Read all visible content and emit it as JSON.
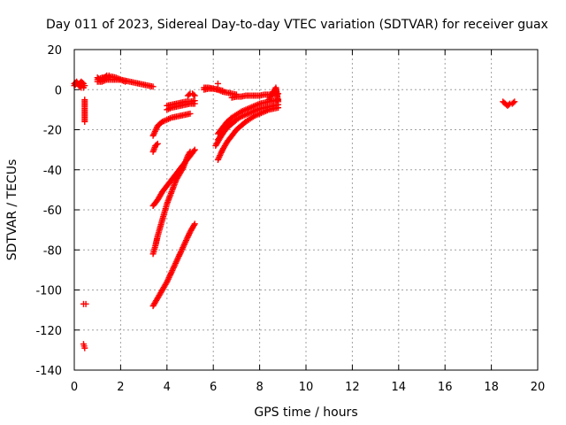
{
  "chart_data": {
    "type": "scatter",
    "title": "Day 011 of 2023, Sidereal Day-to-day VTEC variation (SDTVAR) for receiver guax",
    "xlabel": "GPS time / hours",
    "ylabel": "SDTVAR / TECUs",
    "xlim": [
      0,
      20
    ],
    "ylim": [
      -140,
      20
    ],
    "xticks": [
      "0",
      "2",
      "4",
      "6",
      "8",
      "10",
      "12",
      "14",
      "16",
      "18",
      "20"
    ],
    "yticks": [
      "20",
      "0",
      "-20",
      "-40",
      "-60",
      "-80",
      "-100",
      "-120",
      "-140"
    ],
    "grid": true,
    "marker": "+",
    "color": "#ff0000",
    "series": [
      {
        "name": "s1",
        "x": [
          0.0,
          0.1,
          0.2,
          0.3,
          0.4,
          0.45
        ],
        "y": [
          2,
          3,
          3,
          4,
          3,
          2
        ]
      },
      {
        "name": "s2",
        "x": [
          0.0,
          0.1,
          0.2,
          0.3,
          0.4
        ],
        "y": [
          3,
          4,
          2,
          1,
          1
        ]
      },
      {
        "name": "s3",
        "x": [
          0.45,
          0.45
        ],
        "y": [
          -5,
          -16
        ]
      },
      {
        "name": "s4",
        "x": [
          0.4,
          0.5
        ],
        "y": [
          -107,
          -107
        ]
      },
      {
        "name": "s5",
        "x": [
          0.4,
          0.45
        ],
        "y": [
          -127,
          -129
        ]
      },
      {
        "name": "s6",
        "x": [
          1.0,
          1.2,
          1.4,
          1.6,
          1.8,
          2.0,
          2.2,
          2.4,
          2.6,
          2.8,
          3.0,
          3.2,
          3.4
        ],
        "y": [
          5,
          6,
          6,
          6.5,
          6,
          5,
          4.5,
          4,
          3.5,
          3,
          2.5,
          2,
          1.5
        ]
      },
      {
        "name": "s7",
        "x": [
          1.0,
          1.2,
          1.4,
          1.6,
          1.8,
          2.0,
          2.2
        ],
        "y": [
          4,
          4,
          5,
          5,
          5,
          5,
          4
        ]
      },
      {
        "name": "s8",
        "x": [
          1.0,
          1.1,
          1.2,
          1.3,
          1.4,
          1.5
        ],
        "y": [
          6,
          5,
          5,
          6,
          7,
          7
        ]
      },
      {
        "name": "s9",
        "x": [
          3.4,
          3.6,
          3.8,
          4.0,
          4.2,
          4.4,
          4.6,
          4.8,
          5.0
        ],
        "y": [
          -23,
          -18,
          -16,
          -15,
          -14,
          -13.5,
          -13,
          -12.5,
          -12
        ]
      },
      {
        "name": "s10",
        "x": [
          3.4,
          3.5,
          3.6
        ],
        "y": [
          -31,
          -28,
          -27
        ]
      },
      {
        "name": "s11",
        "x": [
          4.0,
          4.2,
          4.4,
          4.6,
          4.8,
          5.0,
          5.2
        ],
        "y": [
          -10,
          -9,
          -8.5,
          -8,
          -7.5,
          -7,
          -7
        ]
      },
      {
        "name": "s12",
        "x": [
          4.0,
          4.2,
          4.4,
          4.6,
          4.8,
          5.0,
          5.2
        ],
        "y": [
          -8,
          -7.5,
          -7,
          -6.5,
          -6,
          -6,
          -5.5
        ]
      },
      {
        "name": "s13",
        "x": [
          4.9,
          5.0,
          5.1,
          5.2
        ],
        "y": [
          -3,
          -2,
          -2,
          -3
        ]
      },
      {
        "name": "s14",
        "x": [
          3.4,
          3.6,
          3.8,
          4.0,
          4.2,
          4.4,
          4.6,
          4.8,
          5.0,
          5.2
        ],
        "y": [
          -58,
          -55,
          -51,
          -48,
          -45,
          -42,
          -39,
          -36,
          -33,
          -30
        ]
      },
      {
        "name": "s15",
        "x": [
          3.4,
          3.5,
          3.6,
          3.7,
          3.8,
          3.9,
          4.0,
          4.1,
          4.2,
          4.3,
          4.4,
          4.5,
          4.6,
          4.7,
          4.8,
          4.9,
          5.0
        ],
        "y": [
          -82,
          -78,
          -73,
          -69,
          -65,
          -61,
          -57,
          -54,
          -51,
          -48,
          -45,
          -43,
          -41,
          -39,
          -36,
          -33,
          -31
        ]
      },
      {
        "name": "s16",
        "x": [
          3.4,
          3.6,
          3.8,
          4.0,
          4.2,
          4.4,
          4.6,
          4.8,
          5.0,
          5.2
        ],
        "y": [
          -108,
          -104,
          -100,
          -96,
          -91,
          -86,
          -81,
          -76,
          -71,
          -67
        ]
      },
      {
        "name": "s17",
        "x": [
          5.6,
          5.8,
          6.0,
          6.2,
          6.4,
          6.6,
          6.8,
          7.0
        ],
        "y": [
          1,
          1,
          0.5,
          0,
          -1,
          -1.5,
          -2,
          -2.5
        ]
      },
      {
        "name": "s18",
        "x": [
          5.6,
          5.8,
          6.0,
          6.2,
          6.4
        ],
        "y": [
          0,
          0.5,
          0.5,
          0,
          -0.5
        ]
      },
      {
        "name": "s19",
        "x": [
          6.2
        ],
        "y": [
          3
        ]
      },
      {
        "name": "s20",
        "x": [
          6.8,
          7.0,
          7.2,
          7.4,
          7.6,
          7.8,
          8.0,
          8.2,
          8.4,
          8.6,
          8.8
        ],
        "y": [
          -4,
          -3.5,
          -3.5,
          -3,
          -3,
          -3,
          -3,
          -2.5,
          -2.5,
          -2,
          -2
        ]
      },
      {
        "name": "s21",
        "x": [
          8.4,
          8.5,
          8.6,
          8.7,
          8.8
        ],
        "y": [
          -5,
          -3,
          -1,
          1,
          -6
        ]
      },
      {
        "name": "s22",
        "x": [
          6.2,
          6.4,
          6.6,
          6.8,
          7.0,
          7.2,
          7.4,
          7.6,
          7.8,
          8.0,
          8.2,
          8.4,
          8.6,
          8.8
        ],
        "y": [
          -22,
          -19,
          -16,
          -14,
          -12.5,
          -11,
          -10,
          -9,
          -8,
          -7,
          -6.5,
          -6,
          -5.5,
          -5
        ]
      },
      {
        "name": "s23",
        "x": [
          6.2,
          6.4,
          6.6,
          6.8,
          7.0,
          7.2,
          7.4,
          7.6,
          7.8,
          8.0,
          8.2,
          8.4,
          8.6,
          8.8
        ],
        "y": [
          -25,
          -22,
          -19,
          -17,
          -15,
          -13.5,
          -12.5,
          -11.5,
          -10.5,
          -9.5,
          -9,
          -8.5,
          -8,
          -7.5
        ]
      },
      {
        "name": "s24",
        "x": [
          6.2,
          6.4,
          6.6,
          6.8,
          7.0,
          7.2,
          7.4,
          7.6,
          7.8,
          8.0,
          8.2,
          8.4,
          8.6,
          8.8
        ],
        "y": [
          -35,
          -30,
          -26,
          -23,
          -20,
          -18,
          -16,
          -14.5,
          -13,
          -12,
          -11,
          -10,
          -9.5,
          -9
        ]
      },
      {
        "name": "s25",
        "x": [
          6.1,
          6.3,
          6.5,
          6.7
        ],
        "y": [
          -28,
          -24,
          -20,
          -17
        ]
      },
      {
        "name": "s26",
        "x": [
          18.5,
          18.6,
          18.7,
          18.8,
          18.9,
          19.0
        ],
        "y": [
          -6,
          -7,
          -8,
          -7,
          -7,
          -6
        ]
      }
    ]
  }
}
